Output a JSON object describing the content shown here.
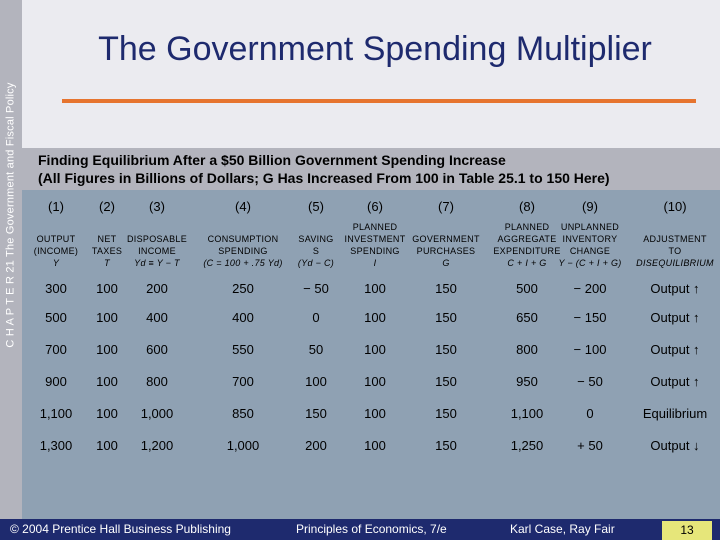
{
  "side_label": "C H A P T E R 21  The Government and Fiscal Policy",
  "title": "The Government Spending Multiplier",
  "subtitle": {
    "line1": "Finding Equilibrium After a $50 Billion Government Spending Increase",
    "line2": "(All Figures in Billions of Dollars; G Has Increased From 100 in Table 25.1 to 150 Here)"
  },
  "columns": [
    {
      "num": "(1)",
      "lines": [
        "OUTPUT",
        "(INCOME)"
      ],
      "sym": "Y"
    },
    {
      "num": "(2)",
      "lines": [
        "NET",
        "TAXES"
      ],
      "sym": "T"
    },
    {
      "num": "(3)",
      "lines": [
        "DISPOSABLE",
        "INCOME"
      ],
      "sym": "Yd ≡ Y − T"
    },
    {
      "num": "(4)",
      "lines": [
        "CONSUMPTION",
        "SPENDING"
      ],
      "sym": "(C = 100 + .75 Yd)"
    },
    {
      "num": "(5)",
      "lines": [
        "SAVING",
        "S"
      ],
      "sym": "(Yd − C)"
    },
    {
      "num": "(6)",
      "lines": [
        "PLANNED",
        "INVESTMENT",
        "SPENDING"
      ],
      "sym": "I"
    },
    {
      "num": "(7)",
      "lines": [
        "GOVERNMENT",
        "PURCHASES"
      ],
      "sym": "G"
    },
    {
      "num": "(8)",
      "lines": [
        "PLANNED",
        "AGGREGATE",
        "EXPENDITURE"
      ],
      "sym": "C + I + G"
    },
    {
      "num": "(9)",
      "lines": [
        "UNPLANNED",
        "INVENTORY",
        "CHANGE"
      ],
      "sym": "Y − (C + I + G)"
    },
    {
      "num": "(10)",
      "lines": [
        "ADJUSTMENT",
        "TO"
      ],
      "sym": "DISEQUILIBRIUM"
    }
  ],
  "rows": [
    [
      "300",
      "100",
      "200",
      "250",
      "− 50",
      "100",
      "150",
      "500",
      "− 200",
      "Output ↑"
    ],
    [
      "500",
      "100",
      "400",
      "400",
      "0",
      "100",
      "150",
      "650",
      "− 150",
      "Output ↑"
    ],
    [
      "700",
      "100",
      "600",
      "550",
      "50",
      "100",
      "150",
      "800",
      "− 100",
      "Output ↑"
    ],
    [
      "900",
      "100",
      "800",
      "700",
      "100",
      "100",
      "150",
      "950",
      "− 50",
      "Output ↑"
    ],
    [
      "1,100",
      "100",
      "1,000",
      "850",
      "150",
      "100",
      "150",
      "1,100",
      "0",
      "Equilibrium"
    ],
    [
      "1,300",
      "100",
      "1,200",
      "1,000",
      "200",
      "100",
      "150",
      "1,250",
      "+ 50",
      "Output ↓"
    ]
  ],
  "footer": {
    "copyright": "© 2004 Prentice Hall Business Publishing",
    "book": "Principles of Economics, 7/e",
    "authors": "Karl Case, Ray Fair",
    "page": "13"
  },
  "colors": {
    "title": "#1e2a6e",
    "accent_rule": "#e6742f",
    "band": "#b3b4bd",
    "table_bg": "#8fa1b3",
    "footer_bg": "#1e2a6e",
    "page_box": "#e6e67a"
  }
}
